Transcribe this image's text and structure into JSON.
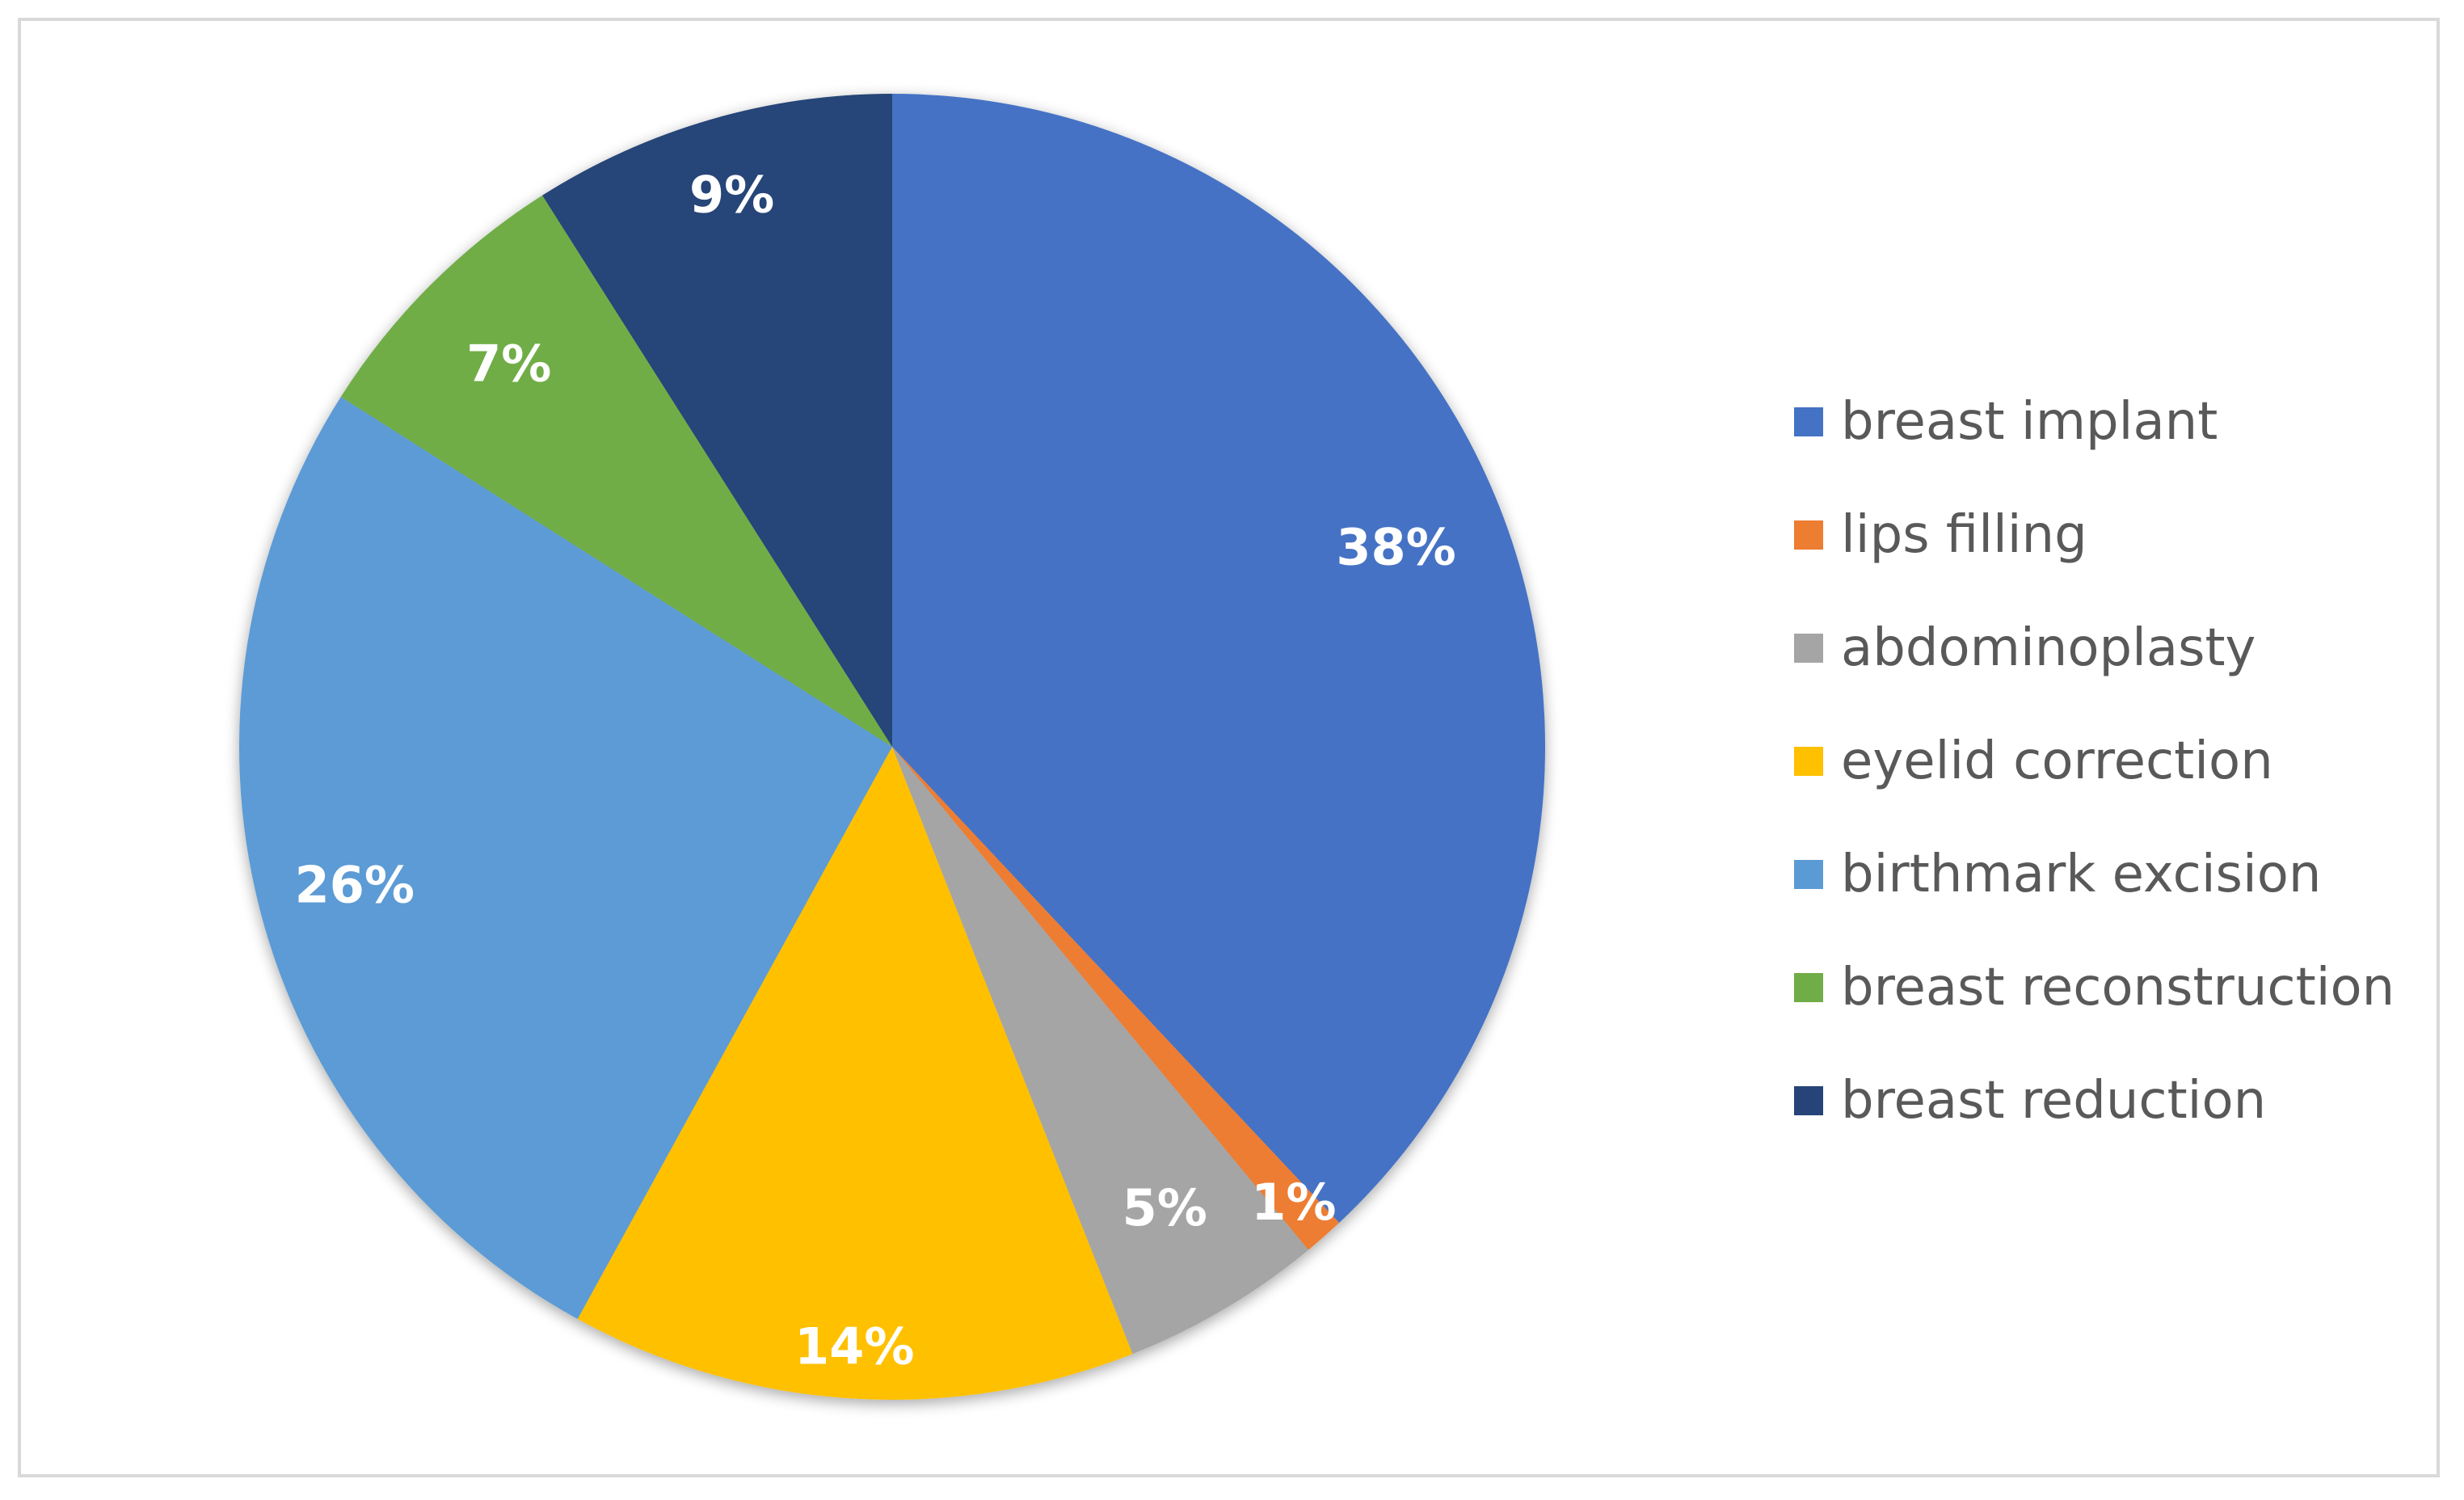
{
  "chart_data": {
    "type": "pie",
    "title": "",
    "categories": [
      "breast implant",
      "lips filling",
      "abdominoplasty",
      "eyelid correction",
      "birthmark excision",
      "breast reconstruction",
      "breast reduction"
    ],
    "values": [
      38,
      1,
      5,
      14,
      26,
      7,
      9
    ],
    "labels": [
      "38%",
      "1%",
      "5%",
      "14%",
      "26%",
      "7%",
      "9%"
    ],
    "colors": [
      "#4472C4",
      "#ED7D31",
      "#A5A5A5",
      "#FFC000",
      "#5B9BD5",
      "#70AD47",
      "#264478"
    ],
    "start": "12 o'clock",
    "direction": "clockwise",
    "legend_position": "right"
  }
}
